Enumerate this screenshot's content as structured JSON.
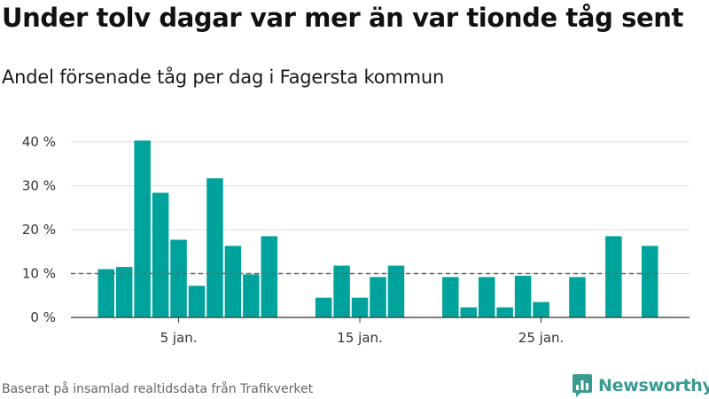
{
  "header": {
    "title": "Under tolv dagar var mer än var tionde tåg sent",
    "subtitle": "Andel försenade tåg per dag i Fagersta kommun"
  },
  "footer": {
    "source": "Baserat på insamlad realtidsdata från Trafikverket",
    "brand": "Newsworthy"
  },
  "colors": {
    "bar": "#00A39B",
    "reference_line": "#666666",
    "grid": "#dddddd",
    "brand": "#3a9a90"
  },
  "chart_data": {
    "type": "bar",
    "x": [
      1,
      2,
      3,
      4,
      5,
      6,
      7,
      8,
      9,
      10,
      11,
      12,
      13,
      14,
      15,
      16,
      17,
      18,
      19,
      20,
      21,
      22,
      23,
      24,
      25,
      26,
      27,
      28,
      29,
      30,
      31
    ],
    "values": [
      11,
      11.5,
      40.3,
      28.4,
      17.7,
      7.2,
      31.7,
      16.3,
      9.8,
      18.5,
      null,
      null,
      4.5,
      11.8,
      4.5,
      9.2,
      11.8,
      null,
      null,
      9.2,
      2.3,
      9.2,
      2.3,
      9.5,
      3.5,
      null,
      9.2,
      null,
      18.5,
      null,
      16.3
    ],
    "reference_line": 10,
    "ylim": [
      0,
      40
    ],
    "yticks": [
      0,
      10,
      20,
      30,
      40
    ],
    "ytick_labels": [
      "0 %",
      "10 %",
      "20 %",
      "30 %",
      "40 %"
    ],
    "xticks": [
      5,
      15,
      25
    ],
    "xtick_labels": [
      "5 jan.",
      "15 jan.",
      "25 jan."
    ],
    "grid": true
  }
}
